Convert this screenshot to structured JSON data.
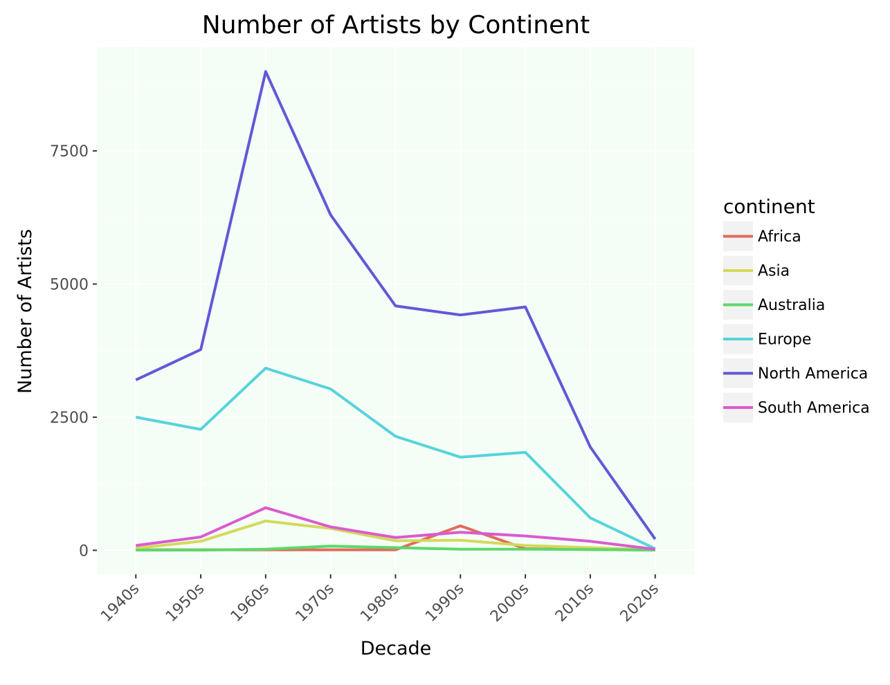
{
  "chart_data": {
    "type": "line",
    "title": "Number of Artists by Continent",
    "xlabel": "Decade",
    "ylabel": "Number of Artists",
    "x": [
      "1940s",
      "1950s",
      "1960s",
      "1970s",
      "1980s",
      "1990s",
      "2000s",
      "2010s",
      "2020s"
    ],
    "ylim": [
      -450,
      9450
    ],
    "yticks": [
      0,
      2500,
      5000,
      7500
    ],
    "ytick_labels": [
      "0",
      "2500",
      "5000",
      "7500"
    ],
    "grid": true,
    "panel_background": "#f4fdf6",
    "legend": {
      "title": "continent",
      "position": "right"
    },
    "series": [
      {
        "name": "Africa",
        "color": "#e06b5c",
        "values": [
          10,
          10,
          10,
          10,
          10,
          460,
          30,
          15,
          5
        ]
      },
      {
        "name": "Asia",
        "color": "#d4d95a",
        "values": [
          40,
          170,
          550,
          410,
          180,
          190,
          90,
          50,
          10
        ]
      },
      {
        "name": "Australia",
        "color": "#5dd86a",
        "values": [
          5,
          5,
          20,
          80,
          50,
          20,
          20,
          15,
          5
        ]
      },
      {
        "name": "Europe",
        "color": "#57d3db",
        "values": [
          2500,
          2270,
          3420,
          3030,
          2140,
          1750,
          1840,
          610,
          30
        ]
      },
      {
        "name": "North America",
        "color": "#6159d6",
        "values": [
          3200,
          3770,
          8990,
          6300,
          4590,
          4420,
          4570,
          1940,
          210
        ]
      },
      {
        "name": "South America",
        "color": "#da5bd0",
        "values": [
          90,
          250,
          800,
          440,
          240,
          340,
          270,
          170,
          20
        ]
      }
    ]
  }
}
